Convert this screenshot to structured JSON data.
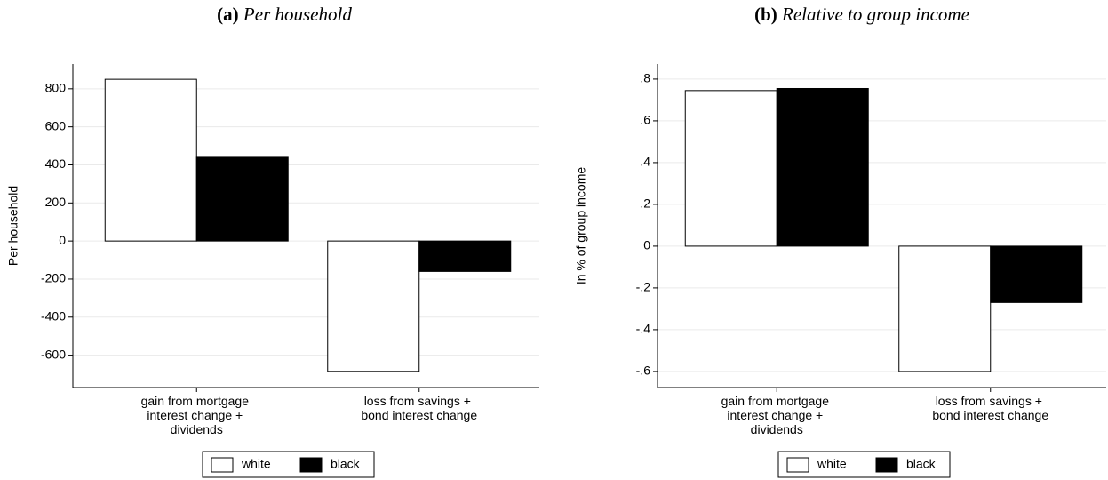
{
  "chart_data": [
    {
      "type": "bar",
      "panel": "(a)",
      "title": "Per household",
      "ylabel": "Per household",
      "categories": [
        "gain from mortgage interest change + dividends",
        "loss from savings + bond interest change"
      ],
      "series": [
        {
          "name": "white",
          "color": "#ffffff",
          "values": [
            850,
            -685
          ]
        },
        {
          "name": "black",
          "color": "#000000",
          "values": [
            440,
            -160
          ]
        }
      ],
      "ylim": [
        -770,
        930
      ],
      "yticks": [
        800,
        600,
        400,
        200,
        0,
        -200,
        -400,
        -600
      ],
      "grid": true,
      "legend": "bottom"
    },
    {
      "type": "bar",
      "panel": "(b)",
      "title": "Relative to group income",
      "ylabel": "In % of group income",
      "categories": [
        "gain from mortgage interest change + dividends",
        "loss from savings + bond interest change"
      ],
      "series": [
        {
          "name": "white",
          "color": "#ffffff",
          "values": [
            0.745,
            -0.6
          ]
        },
        {
          "name": "black",
          "color": "#000000",
          "values": [
            0.755,
            -0.27
          ]
        }
      ],
      "ylim": [
        -0.677,
        0.872
      ],
      "yticks": [
        {
          "value": 0.8,
          "label": ".8"
        },
        {
          "value": 0.6,
          "label": ".6"
        },
        {
          "value": 0.4,
          "label": ".4"
        },
        {
          "value": 0.2,
          "label": ".2"
        },
        0,
        {
          "value": -0.2,
          "label": "-.2"
        },
        {
          "value": -0.4,
          "label": "-.4"
        },
        {
          "value": -0.6,
          "label": "-.6"
        }
      ],
      "grid": true,
      "legend": "bottom"
    }
  ]
}
